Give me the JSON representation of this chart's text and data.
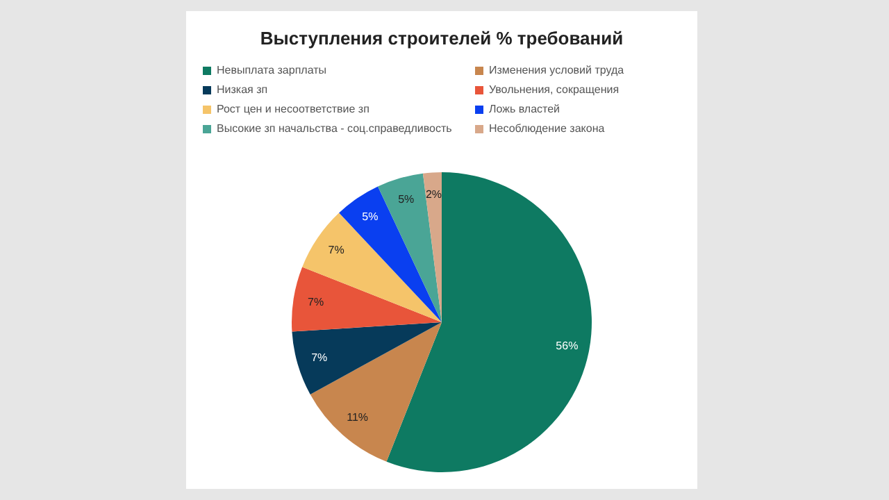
{
  "chart_data": {
    "type": "pie",
    "title": "Выступления строителей  % требований",
    "categories": [
      "Невыплата зарплаты",
      "Изменения условий труда",
      "Низкая зп",
      "Увольнения, сокращения",
      "Рост цен и несоответствие зп",
      "Ложь властей",
      "Высокие зп начальства - соц.справедливость",
      "Несоблюдение закона"
    ],
    "values": [
      56,
      11,
      7,
      7,
      7,
      5,
      5,
      2
    ],
    "colors": [
      "#0e7a62",
      "#c8864e",
      "#063a5a",
      "#e8553a",
      "#f5c46a",
      "#0a3ff0",
      "#4aa596",
      "#d8a88a"
    ],
    "value_labels": [
      "56%",
      "11%",
      "7%",
      "7%",
      "7%",
      "5%",
      "5%",
      "2%"
    ],
    "legend": "top"
  }
}
